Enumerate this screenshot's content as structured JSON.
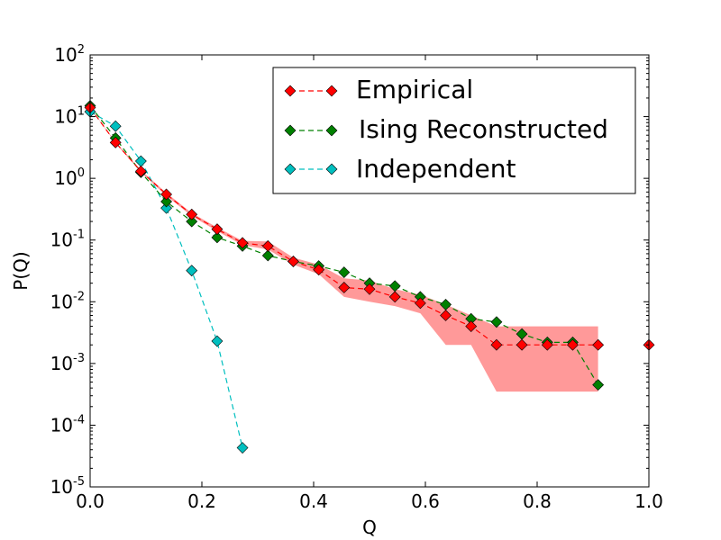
{
  "chart_data": {
    "type": "line",
    "xlabel": "Q",
    "ylabel": "P(Q)",
    "yscale": "log",
    "xlim": [
      0.0,
      1.0
    ],
    "ylim_exponents": [
      -5,
      2
    ],
    "x_ticks": [
      "0.0",
      "0.2",
      "0.4",
      "0.6",
      "0.8",
      "1.0"
    ],
    "x_tick_values": [
      0.0,
      0.2,
      0.4,
      0.6,
      0.8,
      1.0
    ],
    "y_ticks": [
      {
        "base": "10",
        "exp": "-5",
        "value": -5
      },
      {
        "base": "10",
        "exp": "-4",
        "value": -4
      },
      {
        "base": "10",
        "exp": "-3",
        "value": -3
      },
      {
        "base": "10",
        "exp": "-2",
        "value": -2
      },
      {
        "base": "10",
        "exp": "-1",
        "value": -1
      },
      {
        "base": "10",
        "exp": "0",
        "value": 0
      },
      {
        "base": "10",
        "exp": "1",
        "value": 1
      },
      {
        "base": "10",
        "exp": "2",
        "value": 2
      }
    ],
    "legend_position": "top-right",
    "series": [
      {
        "name": "Empirical",
        "color": "#ff0000",
        "line_color": "#ff0000",
        "x": [
          0.0,
          0.0455,
          0.0909,
          0.1364,
          0.1818,
          0.2273,
          0.2727,
          0.3182,
          0.3636,
          0.4091,
          0.4545,
          0.5,
          0.5455,
          0.5909,
          0.6364,
          0.6818,
          0.7273,
          0.7727,
          0.8182,
          0.8636,
          0.9091,
          1.0
        ],
        "y": [
          14,
          3.8,
          1.3,
          0.55,
          0.26,
          0.15,
          0.09,
          0.08,
          0.045,
          0.033,
          0.017,
          0.016,
          0.012,
          0.0095,
          0.006,
          0.004,
          0.002,
          0.002,
          0.002,
          0.002,
          0.002,
          0.002
        ],
        "connect_count": 21,
        "band_lower": [
          14,
          3.7,
          1.25,
          0.52,
          0.245,
          0.14,
          0.083,
          0.07,
          0.04,
          0.028,
          0.012,
          0.01,
          0.0085,
          0.0065,
          0.002,
          0.002,
          0.00035,
          0.00035,
          0.00035,
          0.00035,
          0.00035
        ],
        "band_upper": [
          14,
          3.9,
          1.35,
          0.58,
          0.275,
          0.16,
          0.097,
          0.095,
          0.052,
          0.04,
          0.024,
          0.022,
          0.016,
          0.013,
          0.009,
          0.006,
          0.004,
          0.004,
          0.004,
          0.004,
          0.004
        ]
      },
      {
        "name": "Ising Reconstructed",
        "color": "#008000",
        "line_color": "#008000",
        "x": [
          0.0,
          0.0455,
          0.0909,
          0.1364,
          0.1818,
          0.2273,
          0.2727,
          0.3182,
          0.3636,
          0.4091,
          0.4545,
          0.5,
          0.5455,
          0.5909,
          0.6364,
          0.6818,
          0.7273,
          0.7727,
          0.8182,
          0.8636,
          0.9091
        ],
        "y": [
          15,
          4.5,
          1.25,
          0.42,
          0.2,
          0.11,
          0.08,
          0.056,
          0.045,
          0.038,
          0.03,
          0.02,
          0.018,
          0.012,
          0.009,
          0.0053,
          0.0047,
          0.003,
          0.0022,
          0.0022,
          0.00045
        ]
      },
      {
        "name": "Independent",
        "color": "#00bfbf",
        "line_color": "#00bfbf",
        "x": [
          0.0,
          0.0455,
          0.0909,
          0.1364,
          0.1818,
          0.2273,
          0.2727
        ],
        "y": [
          12,
          7,
          1.9,
          0.33,
          0.032,
          0.0023,
          4.3e-05
        ]
      }
    ]
  }
}
